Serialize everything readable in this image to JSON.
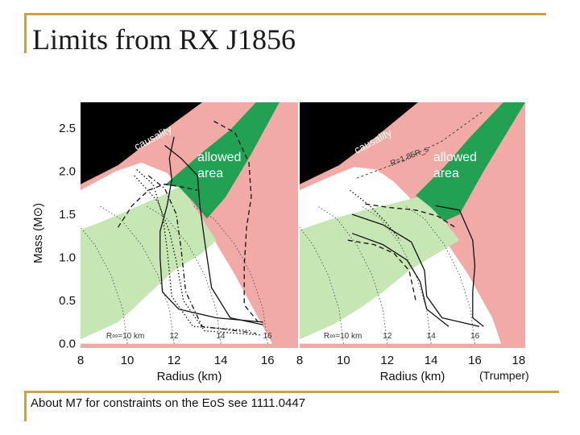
{
  "slide": {
    "title": "Limits from RX J1856",
    "credit": "(Trumper)",
    "footnote": "About M7 for constraints on the EoS see 1111.0447"
  },
  "colors": {
    "causality": "#000000",
    "pink": "#f2aaa6",
    "allowed": "#22a155",
    "light_green": "#c6e6b4",
    "white": "#ffffff",
    "rule": "#c8a24a"
  },
  "chart_data": [
    {
      "type": "line",
      "xlabel": "Radius (km)",
      "ylabel": "Mass (M⊙)",
      "xlim": [
        8,
        17.3
      ],
      "ylim": [
        -0.05,
        2.8
      ],
      "x_ticks": [
        "8",
        "10",
        "12",
        "14",
        "16"
      ],
      "y_ticks": [
        "0.0",
        "0.5",
        "1.0",
        "1.5",
        "2.0",
        "2.5"
      ],
      "region_labels": {
        "causality": "causality",
        "allowed": "allowed\narea"
      },
      "bottom_annotations": [
        "R∞=10 km",
        "12",
        "14",
        "16"
      ],
      "series": [
        {
          "style": "solid",
          "points": [
            [
              12.0,
              2.4
            ],
            [
              11.8,
              2.15
            ],
            [
              11.9,
              1.9
            ],
            [
              11.7,
              1.6
            ],
            [
              11.4,
              1.3
            ],
            [
              11.4,
              1.0
            ],
            [
              11.5,
              0.6
            ],
            [
              12.2,
              0.4
            ],
            [
              13.8,
              0.3
            ],
            [
              15.8,
              0.25
            ]
          ]
        },
        {
          "style": "solid",
          "points": [
            [
              11.6,
              2.3
            ],
            [
              12.3,
              2.15
            ],
            [
              13.0,
              1.95
            ],
            [
              13.1,
              1.6
            ],
            [
              13.3,
              1.2
            ],
            [
              13.6,
              0.65
            ],
            [
              14.4,
              0.3
            ],
            [
              15.8,
              0.22
            ]
          ]
        },
        {
          "style": "dashed",
          "points": [
            [
              13.7,
              2.58
            ],
            [
              14.6,
              2.45
            ],
            [
              15.2,
              2.1
            ],
            [
              15.3,
              1.7
            ],
            [
              15.1,
              1.35
            ],
            [
              15.0,
              0.9
            ],
            [
              15.0,
              0.45
            ],
            [
              15.6,
              0.25
            ]
          ]
        },
        {
          "style": "dashed",
          "points": [
            [
              9.6,
              1.35
            ],
            [
              10.2,
              1.6
            ],
            [
              10.9,
              1.78
            ],
            [
              11.6,
              1.85
            ],
            [
              12.3,
              1.82
            ],
            [
              13.0,
              1.78
            ]
          ]
        },
        {
          "style": "dotdash",
          "points": [
            [
              10.9,
              1.95
            ],
            [
              11.6,
              1.8
            ],
            [
              12.1,
              1.5
            ],
            [
              12.3,
              1.1
            ],
            [
              12.5,
              0.6
            ],
            [
              13.2,
              0.2
            ],
            [
              15.5,
              0.12
            ]
          ]
        },
        {
          "style": "dotted",
          "points": [
            [
              10.3,
              1.95
            ],
            [
              11.3,
              1.65
            ],
            [
              11.8,
              1.3
            ],
            [
              12.1,
              0.95
            ],
            [
              12.4,
              0.5
            ],
            [
              13.3,
              0.15
            ],
            [
              15.7,
              0.1
            ]
          ]
        },
        {
          "style": "dotted",
          "points": [
            [
              10.4,
              2.02
            ],
            [
              11.1,
              1.85
            ],
            [
              11.5,
              1.5
            ],
            [
              11.7,
              1.1
            ],
            [
              11.9,
              0.55
            ],
            [
              12.8,
              0.2
            ],
            [
              15.3,
              0.15
            ]
          ]
        }
      ]
    },
    {
      "type": "line",
      "xlabel": "Radius (km)",
      "ylabel": "",
      "xlim": [
        8,
        18.3
      ],
      "ylim": [
        -0.05,
        2.8
      ],
      "x_ticks": [
        "8",
        "10",
        "12",
        "14",
        "16",
        "18"
      ],
      "y_ticks": [],
      "region_labels": {
        "causality": "causality",
        "allowed": "allowed\narea",
        "curve": "R=1.85R_s"
      },
      "bottom_annotations": [
        "R∞=10 km",
        "12",
        "14",
        "16"
      ],
      "series": [
        {
          "style": "solid",
          "points": [
            [
              14.2,
              1.6
            ],
            [
              15.3,
              1.55
            ],
            [
              15.9,
              1.2
            ],
            [
              16.0,
              0.9
            ],
            [
              15.9,
              0.6
            ],
            [
              15.9,
              0.3
            ],
            [
              16.4,
              0.2
            ]
          ]
        },
        {
          "style": "solid",
          "points": [
            [
              10.4,
              1.5
            ],
            [
              11.8,
              1.38
            ],
            [
              13.1,
              1.18
            ],
            [
              13.7,
              0.85
            ],
            [
              13.8,
              0.55
            ],
            [
              14.5,
              0.3
            ],
            [
              16.2,
              0.2
            ]
          ]
        },
        {
          "style": "solid",
          "points": [
            [
              10.4,
              1.28
            ],
            [
              11.8,
              1.15
            ],
            [
              12.9,
              0.97
            ],
            [
              13.5,
              0.72
            ],
            [
              13.8,
              0.4
            ],
            [
              14.8,
              0.2
            ]
          ]
        },
        {
          "style": "dashed",
          "points": [
            [
              11.0,
              1.62
            ],
            [
              12.1,
              1.58
            ],
            [
              13.3,
              1.55
            ],
            [
              14.3,
              1.48
            ],
            [
              15.1,
              1.35
            ]
          ]
        },
        {
          "style": "dashed",
          "points": [
            [
              10.2,
              1.2
            ],
            [
              11.4,
              1.15
            ],
            [
              12.3,
              1.05
            ],
            [
              13.0,
              0.85
            ],
            [
              13.3,
              0.5
            ]
          ]
        },
        {
          "style": "dotted",
          "points": [
            [
              10.3,
              1.78
            ],
            [
              11.2,
              1.6
            ],
            [
              11.9,
              1.42
            ],
            [
              12.6,
              1.2
            ]
          ]
        }
      ]
    }
  ]
}
